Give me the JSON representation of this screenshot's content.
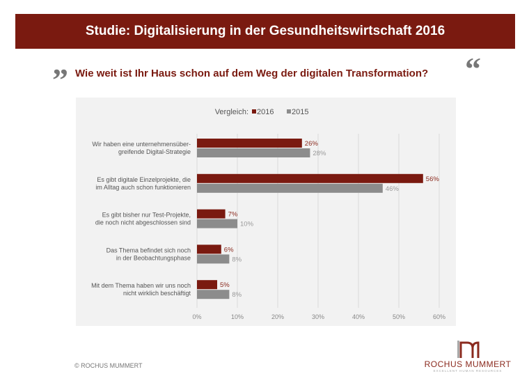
{
  "header": {
    "title": "Studie:  Digitalisierung in der Gesundheitswirtschaft 2016"
  },
  "question": "Wie weit ist Ihr Haus schon auf dem Weg der digitalen Transformation?",
  "quote_open": "”",
  "quote_close": "“",
  "footer": {
    "copyright": "© ROCHUS MUMMERT",
    "logo_name": "ROCHUS MUMMERT",
    "logo_tagline": "EXCELLENT HUMAN RESOURCES"
  },
  "colors": {
    "s2016": "#7a1a10",
    "s2015": "#8c8c8c",
    "bg": "#f2f2f2"
  },
  "chart_data": {
    "type": "bar",
    "orientation": "horizontal",
    "legend_title": "Vergleich:",
    "legend_position": "top",
    "categories": [
      [
        "Wir haben eine unternehmensüber-",
        "greifende Digital-Strategie"
      ],
      [
        "Es gibt digitale Einzelprojekte, die",
        "im Alltag auch schon funktionieren"
      ],
      [
        "Es gibt bisher nur Test-Projekte,",
        "die noch nicht abgeschlossen sind"
      ],
      [
        "Das Thema befindet sich noch",
        "in der Beobachtungsphase"
      ],
      [
        "Mit dem Thema haben wir uns noch",
        "nicht wirklich beschäftigt"
      ]
    ],
    "series": [
      {
        "name": "2016",
        "values": [
          26,
          56,
          7,
          6,
          5
        ]
      },
      {
        "name": "2015",
        "values": [
          28,
          46,
          10,
          8,
          8
        ]
      }
    ],
    "xlim": [
      0,
      60
    ],
    "xticks": [
      0,
      10,
      20,
      30,
      40,
      50,
      60
    ],
    "tick_suffix": "%",
    "grid": true
  }
}
